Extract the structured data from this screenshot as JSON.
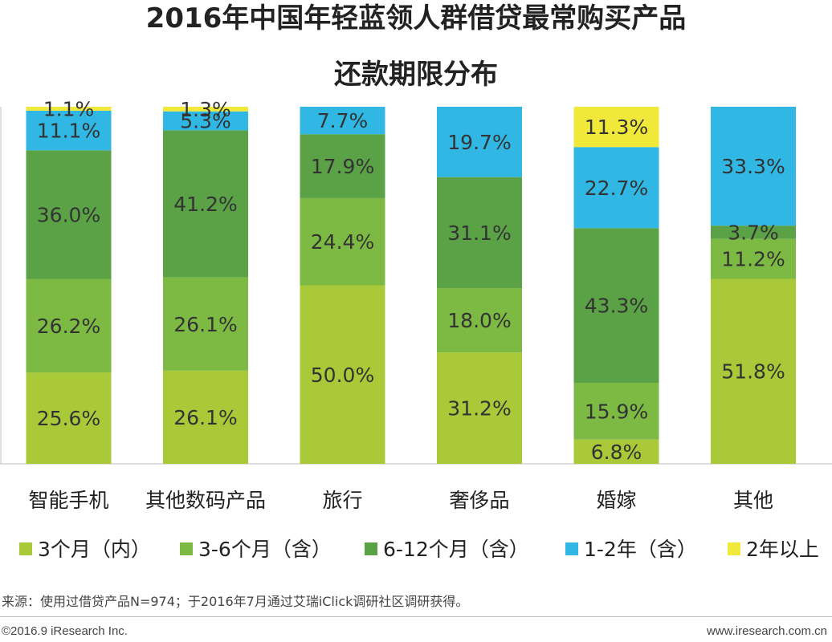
{
  "title": {
    "line1": "2016年中国年轻蓝领人群借贷最常购买产品",
    "line2": "还款期限分布"
  },
  "chart_data": {
    "type": "bar",
    "stacked": true,
    "percent": true,
    "categories": [
      "智能手机",
      "其他数码产品",
      "旅行",
      "奢侈品",
      "婚嫁",
      "其他"
    ],
    "series": [
      {
        "name": "3个月（内）",
        "color": "#a9c939",
        "values": [
          25.6,
          26.1,
          50.0,
          31.2,
          6.8,
          51.8
        ]
      },
      {
        "name": "3-6个月（含）",
        "color": "#7dba43",
        "values": [
          26.2,
          26.1,
          24.4,
          18.0,
          15.9,
          11.2
        ]
      },
      {
        "name": "6-12个月（含）",
        "color": "#5aa245",
        "values": [
          36.0,
          41.2,
          17.9,
          31.1,
          43.3,
          3.7
        ]
      },
      {
        "name": "1-2年（含）",
        "color": "#31b7e3",
        "values": [
          11.1,
          5.3,
          7.7,
          19.7,
          22.7,
          33.3
        ]
      },
      {
        "name": "2年以上",
        "color": "#f1e93a",
        "values": [
          1.1,
          1.3,
          0,
          0,
          11.3,
          0
        ]
      }
    ],
    "ylim": [
      0,
      100
    ],
    "legend_position": "bottom",
    "grid": false
  },
  "footer": {
    "source": "来源：使用过借贷产品N=974；于2016年7月通过艾瑞iClick调研社区调研获得。",
    "copyright": "©2016.9 iResearch Inc.",
    "website": "www.iresearch.com.cn"
  }
}
